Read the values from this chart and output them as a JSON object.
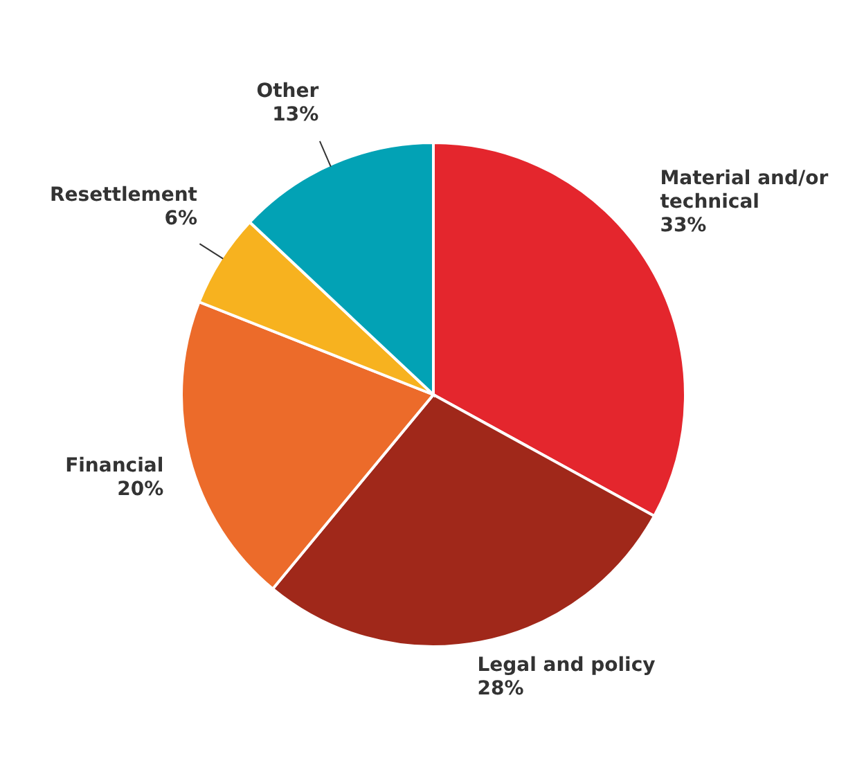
{
  "chart_data": {
    "type": "pie",
    "categories": [
      "Material and/or technical",
      "Legal and policy",
      "Financial",
      "Resettlement",
      "Other"
    ],
    "values": [
      33,
      28,
      20,
      6,
      13
    ],
    "colors": [
      "#e4262d",
      "#a0281a",
      "#ec6b2a",
      "#f7b21f",
      "#02a2b5"
    ],
    "value_labels": [
      "33%",
      "28%",
      "20%",
      "6%",
      "13%"
    ]
  }
}
